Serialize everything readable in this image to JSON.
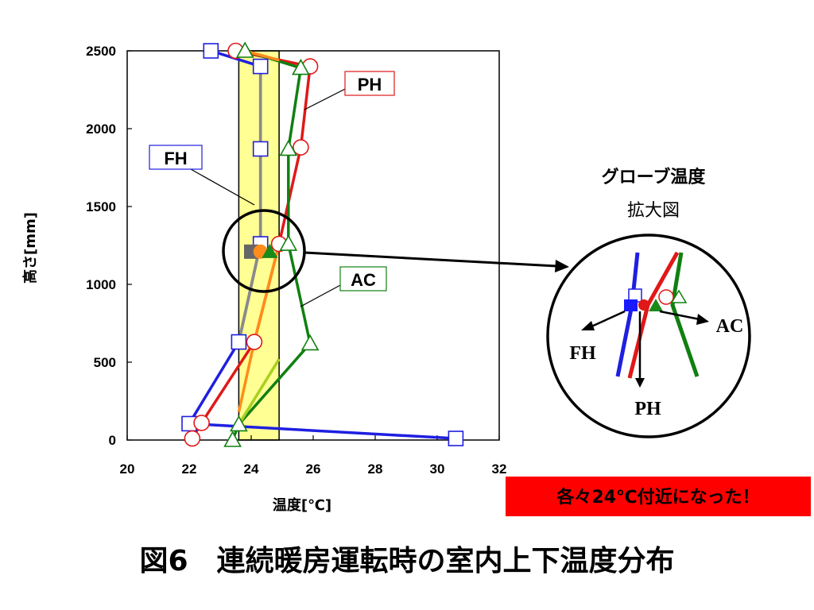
{
  "chart_data": {
    "type": "line",
    "xlabel": "温度[℃]",
    "ylabel": "高さ[mm]",
    "xlim": [
      20,
      32
    ],
    "ylim": [
      0,
      2500
    ],
    "xticks": [
      20,
      22,
      24,
      26,
      28,
      30,
      32
    ],
    "yticks": [
      0,
      500,
      1000,
      1500,
      2000,
      2500
    ],
    "grid": false,
    "highlight_band": {
      "x_from": 23.6,
      "x_to": 24.9
    },
    "series": [
      {
        "name": "FH",
        "color": "#1f1fe0",
        "marker": "square",
        "points": [
          [
            30.6,
            10
          ],
          [
            22,
            105
          ],
          [
            23.6,
            630
          ],
          [
            24.3,
            1260
          ],
          [
            24.3,
            1870
          ],
          [
            24.3,
            2400
          ],
          [
            22.7,
            2500
          ]
        ]
      },
      {
        "name": "PH",
        "color": "#e01818",
        "marker": "circle",
        "points": [
          [
            22.1,
            10
          ],
          [
            22.4,
            110
          ],
          [
            24.1,
            630
          ],
          [
            24.9,
            1260
          ],
          [
            25.6,
            1880
          ],
          [
            25.9,
            2400
          ],
          [
            23.5,
            2500
          ]
        ]
      },
      {
        "name": "AC",
        "color": "#108010",
        "marker": "triangle",
        "points": [
          [
            23.4,
            0
          ],
          [
            23.6,
            100
          ],
          [
            25.9,
            620
          ],
          [
            25.2,
            1260
          ],
          [
            25.2,
            1870
          ],
          [
            25.6,
            2390
          ],
          [
            23.8,
            2500
          ]
        ]
      }
    ],
    "globe_points": [
      {
        "series": "FH",
        "x": 24.0,
        "y": 1210,
        "color": "#666666",
        "marker": "square-filled"
      },
      {
        "series": "PH",
        "x": 24.3,
        "y": 1210,
        "color": "#ff8c1a",
        "marker": "circle-filled"
      },
      {
        "series": "AC",
        "x": 24.6,
        "y": 1210,
        "color": "#1a8a1a",
        "marker": "triangle-filled"
      }
    ]
  },
  "labels": {
    "ph": "PH",
    "fh": "FH",
    "ac": "AC"
  },
  "inset": {
    "title": "グローブ温度",
    "subtitle": "拡大図",
    "fh": "FH",
    "ph": "PH",
    "ac": "AC"
  },
  "note": "各々24℃付近になった！",
  "caption": "図6　連続暖房運転時の室内上下温度分布",
  "colors": {
    "fh": "#1f1fe0",
    "ph": "#e01818",
    "ac": "#108010",
    "band": "#ffff80",
    "note_bg": "#ff0000"
  }
}
